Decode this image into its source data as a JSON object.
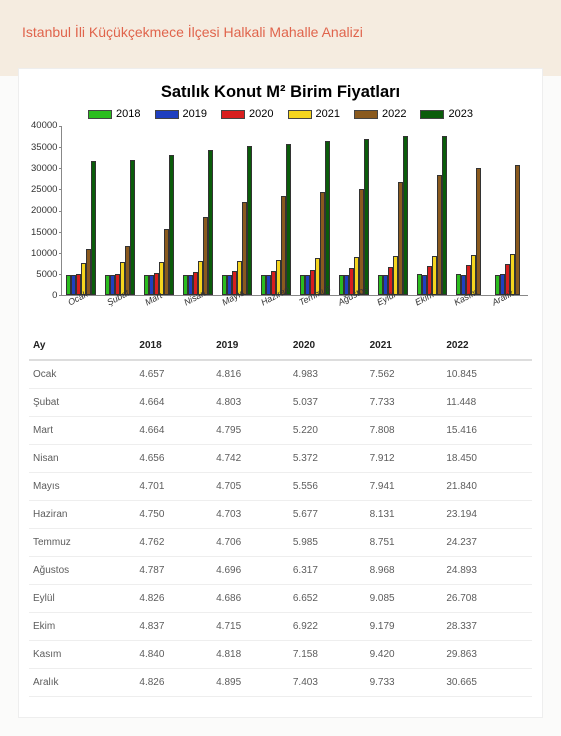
{
  "header": {
    "title": "Istanbul İli Küçükçekmece İlçesi Halkali Mahalle Analizi"
  },
  "chart": {
    "type": "bar",
    "title": "Satılık Konut M² Birim Fiyatları",
    "title_fontsize": 16.5,
    "background_color": "#ffffff",
    "ylim": [
      0,
      40000
    ],
    "ytick_step": 5000,
    "yticks": [
      "40000",
      "35000",
      "30000",
      "25000",
      "20000",
      "15000",
      "10000",
      "5000",
      "0"
    ],
    "series": [
      {
        "name": "2018",
        "color": "#2bbd1e"
      },
      {
        "name": "2019",
        "color": "#1f3fbf"
      },
      {
        "name": "2020",
        "color": "#d81e1e"
      },
      {
        "name": "2021",
        "color": "#f5d51e"
      },
      {
        "name": "2022",
        "color": "#8a5a1e"
      },
      {
        "name": "2023",
        "color": "#0a5c0a"
      }
    ],
    "categories": [
      "Ocak",
      "Şubat",
      "Mart",
      "Nisan",
      "Mayıs",
      "Haziran",
      "Temmuz",
      "Ağustos",
      "Eylül",
      "Ekim",
      "Kasım",
      "Aralık"
    ],
    "data": {
      "2018": [
        4657,
        4664,
        4664,
        4656,
        4701,
        4750,
        4762,
        4787,
        4826,
        4837,
        4840,
        4826
      ],
      "2019": [
        4816,
        4803,
        4795,
        4742,
        4705,
        4703,
        4706,
        4696,
        4686,
        4715,
        4818,
        4895
      ],
      "2020": [
        4983,
        5037,
        5220,
        5372,
        5556,
        5677,
        5985,
        6317,
        6652,
        6922,
        7158,
        7403
      ],
      "2021": [
        7562,
        7733,
        7808,
        7912,
        7941,
        8131,
        8751,
        8968,
        9085,
        9179,
        9420,
        9733
      ],
      "2022": [
        10845,
        11448,
        15416,
        18450,
        21840,
        23194,
        24237,
        24893,
        26708,
        28337,
        29863,
        30665
      ],
      "2023": [
        31600,
        31800,
        33000,
        34200,
        35000,
        35500,
        36200,
        36800,
        37300,
        37400,
        0,
        0
      ]
    },
    "bar_border_color": "#333333",
    "axis_color": "#888888",
    "label_fontsize": 9
  },
  "table": {
    "columns": [
      "Ay",
      "2018",
      "2019",
      "2020",
      "2021",
      "2022"
    ],
    "rows": [
      [
        "Ocak",
        "4.657",
        "4.816",
        "4.983",
        "7.562",
        "10.845"
      ],
      [
        "Şubat",
        "4.664",
        "4.803",
        "5.037",
        "7.733",
        "11.448"
      ],
      [
        "Mart",
        "4.664",
        "4.795",
        "5.220",
        "7.808",
        "15.416"
      ],
      [
        "Nisan",
        "4.656",
        "4.742",
        "5.372",
        "7.912",
        "18.450"
      ],
      [
        "Mayıs",
        "4.701",
        "4.705",
        "5.556",
        "7.941",
        "21.840"
      ],
      [
        "Haziran",
        "4.750",
        "4.703",
        "5.677",
        "8.131",
        "23.194"
      ],
      [
        "Temmuz",
        "4.762",
        "4.706",
        "5.985",
        "8.751",
        "24.237"
      ],
      [
        "Ağustos",
        "4.787",
        "4.696",
        "6.317",
        "8.968",
        "24.893"
      ],
      [
        "Eylül",
        "4.826",
        "4.686",
        "6.652",
        "9.085",
        "26.708"
      ],
      [
        "Ekim",
        "4.837",
        "4.715",
        "6.922",
        "9.179",
        "28.337"
      ],
      [
        "Kasım",
        "4.840",
        "4.818",
        "7.158",
        "9.420",
        "29.863"
      ],
      [
        "Aralık",
        "4.826",
        "4.895",
        "7.403",
        "9.733",
        "30.665"
      ]
    ]
  }
}
